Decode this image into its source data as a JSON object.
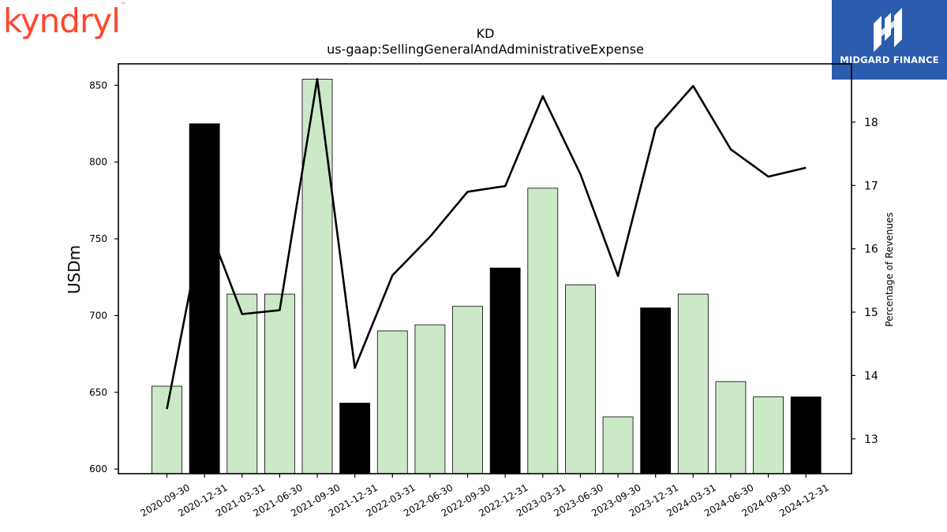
{
  "brand": {
    "logo_text": "kyndryl",
    "tm": "™"
  },
  "publisher": {
    "name": "MIDGARD FINANCE",
    "logo_icon": "midgard-m-icon",
    "bg_color": "#2b5cad"
  },
  "chart_data": {
    "type": "bar",
    "title": "KD",
    "subtitle": "us-gaap:SellingGeneralAndAdministrativeExpense",
    "ylabel": "USDm",
    "y2label": "Percentage of Revenues",
    "ylim": [
      597,
      864
    ],
    "y2lim": [
      12.45,
      18.92
    ],
    "yticks": [
      600,
      650,
      700,
      750,
      800,
      850
    ],
    "y2ticks": [
      13,
      14,
      15,
      16,
      17,
      18
    ],
    "categories": [
      "2020-09-30",
      "2020-12-31",
      "2021-03-31",
      "2021-06-30",
      "2021-09-30",
      "2021-12-31",
      "2022-03-31",
      "2022-06-30",
      "2022-09-30",
      "2022-12-31",
      "2023-03-31",
      "2023-06-30",
      "2023-09-30",
      "2023-12-31",
      "2024-03-31",
      "2024-06-30",
      "2024-09-30",
      "2024-12-31"
    ],
    "series": [
      {
        "kind": "bar",
        "axis": "left",
        "values": [
          654,
          825,
          714,
          714,
          854,
          643,
          690,
          694,
          706,
          731,
          783,
          720,
          634,
          705,
          714,
          657,
          647,
          647
        ],
        "colors": [
          "#cce8c8",
          "#000000",
          "#cce8c8",
          "#cce8c8",
          "#cce8c8",
          "#000000",
          "#cce8c8",
          "#cce8c8",
          "#cce8c8",
          "#000000",
          "#cce8c8",
          "#cce8c8",
          "#cce8c8",
          "#000000",
          "#cce8c8",
          "#cce8c8",
          "#cce8c8",
          "#000000"
        ]
      },
      {
        "kind": "line",
        "axis": "right",
        "color": "#000000",
        "values": [
          13.47,
          16.52,
          14.97,
          15.03,
          18.68,
          14.12,
          15.58,
          16.19,
          16.9,
          16.99,
          18.41,
          17.18,
          15.57,
          17.9,
          18.57,
          17.57,
          17.14,
          17.28
        ]
      }
    ],
    "grid": false,
    "legend": "none",
    "colors": {
      "quarter_bar": "#cce8c8",
      "year_end_bar": "#000000",
      "line": "#000000"
    }
  }
}
